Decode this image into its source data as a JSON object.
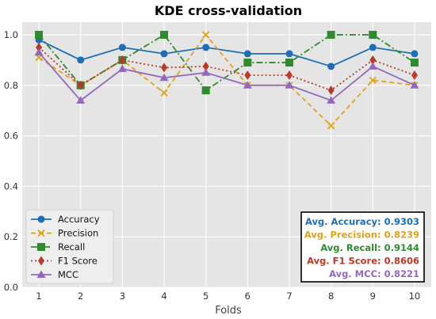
{
  "chart_data": {
    "type": "line",
    "title": "KDE cross-validation",
    "xlabel": "Folds",
    "ylabel": "",
    "x": [
      1,
      2,
      3,
      4,
      5,
      6,
      7,
      8,
      9,
      10
    ],
    "xlim": [
      0.6,
      10.4
    ],
    "ylim": [
      0.0,
      1.05
    ],
    "xticks": [
      "1",
      "2",
      "3",
      "4",
      "5",
      "6",
      "7",
      "8",
      "9",
      "10"
    ],
    "yticks": [
      "0.0",
      "0.2",
      "0.4",
      "0.6",
      "0.8",
      "1.0"
    ],
    "grid": true,
    "legend_position": "bottom-left",
    "series": [
      {
        "name": "Accuracy",
        "color": "#1f6eb5",
        "marker": "circle",
        "dash": "solid",
        "values": [
          0.98,
          0.9,
          0.95,
          0.925,
          0.95,
          0.925,
          0.925,
          0.875,
          0.95,
          0.925
        ]
      },
      {
        "name": "Precision",
        "color": "#e0a11c",
        "marker": "x",
        "dash": "dashed",
        "values": [
          0.91,
          0.8,
          0.9,
          0.77,
          1.0,
          0.8,
          0.8,
          0.64,
          0.82,
          0.8
        ]
      },
      {
        "name": "Recall",
        "color": "#2e8b2e",
        "marker": "square",
        "dash": "dashdot",
        "values": [
          1.0,
          0.8,
          0.9,
          1.0,
          0.78,
          0.89,
          0.89,
          1.0,
          1.0,
          0.89
        ]
      },
      {
        "name": "F1 Score",
        "color": "#b83a2a",
        "marker": "diamond",
        "dash": "dotted",
        "values": [
          0.95,
          0.8,
          0.9,
          0.87,
          0.875,
          0.84,
          0.84,
          0.78,
          0.9,
          0.84
        ]
      },
      {
        "name": "MCC",
        "color": "#9467bd",
        "marker": "triangle",
        "dash": "solid",
        "values": [
          0.93,
          0.74,
          0.865,
          0.83,
          0.85,
          0.8,
          0.8,
          0.74,
          0.875,
          0.8
        ]
      }
    ],
    "summary_box": [
      {
        "text": "Avg. Accuracy: 0.9303",
        "color": "#1f6eb5"
      },
      {
        "text": "Avg. Precision: 0.8239",
        "color": "#e0a11c"
      },
      {
        "text": "Avg. Recall: 0.9144",
        "color": "#2e8b2e"
      },
      {
        "text": "Avg. F1 Score: 0.8606",
        "color": "#b83a2a"
      },
      {
        "text": "Avg. MCC: 0.8221",
        "color": "#9467bd"
      }
    ]
  }
}
